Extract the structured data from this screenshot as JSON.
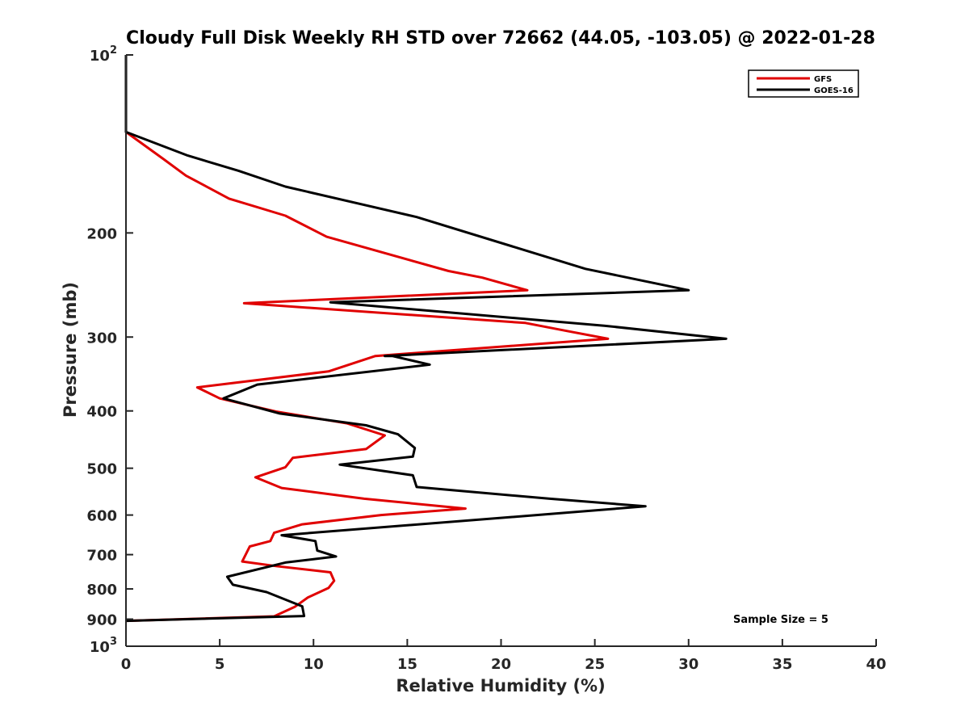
{
  "chart_data": {
    "type": "line",
    "title": "Cloudy Full Disk Weekly RH STD over 72662 (44.05, -103.05) @ 2022-01-28",
    "xlabel": "Relative Humidity (%)",
    "ylabel": "Pressure (mb)",
    "xlim": [
      0,
      40
    ],
    "ylim": [
      100,
      1000
    ],
    "yscale": "log",
    "y_reversed": true,
    "grid": false,
    "legend_placement": "top-right",
    "x_ticks": [
      "0",
      "5",
      "10",
      "15",
      "20",
      "25",
      "30",
      "35",
      "40"
    ],
    "y_ticks": [
      {
        "value": 100,
        "base": "10",
        "exp": "2"
      },
      {
        "value": 200,
        "label": "200"
      },
      {
        "value": 300,
        "label": "300"
      },
      {
        "value": 400,
        "label": "400"
      },
      {
        "value": 500,
        "label": "500"
      },
      {
        "value": 600,
        "label": "600"
      },
      {
        "value": 700,
        "label": "700"
      },
      {
        "value": 800,
        "label": "800"
      },
      {
        "value": 900,
        "label": "900"
      },
      {
        "value": 1000,
        "base": "10",
        "exp": "3"
      }
    ],
    "annotation": "Sample Size = 5",
    "series": [
      {
        "name": "GFS",
        "color": "#e00000",
        "points": [
          {
            "x": 0,
            "y": 100
          },
          {
            "x": 0,
            "y": 125
          },
          {
            "x": 0,
            "y": 135
          },
          {
            "x": 2,
            "y": 150
          },
          {
            "x": 3.2,
            "y": 160
          },
          {
            "x": 5.5,
            "y": 175
          },
          {
            "x": 8.5,
            "y": 187
          },
          {
            "x": 10.7,
            "y": 203
          },
          {
            "x": 17.2,
            "y": 232
          },
          {
            "x": 19,
            "y": 238
          },
          {
            "x": 21.4,
            "y": 250
          },
          {
            "x": 6.3,
            "y": 263
          },
          {
            "x": 21.3,
            "y": 284
          },
          {
            "x": 23.5,
            "y": 293
          },
          {
            "x": 25.7,
            "y": 302
          },
          {
            "x": 13.3,
            "y": 323
          },
          {
            "x": 10.8,
            "y": 343
          },
          {
            "x": 3.8,
            "y": 365
          },
          {
            "x": 5,
            "y": 381
          },
          {
            "x": 8,
            "y": 401
          },
          {
            "x": 11.8,
            "y": 420
          },
          {
            "x": 13.8,
            "y": 440
          },
          {
            "x": 12.8,
            "y": 464
          },
          {
            "x": 8.9,
            "y": 480
          },
          {
            "x": 8.5,
            "y": 498
          },
          {
            "x": 6.9,
            "y": 518
          },
          {
            "x": 8.3,
            "y": 540
          },
          {
            "x": 12.7,
            "y": 563
          },
          {
            "x": 18.1,
            "y": 585
          },
          {
            "x": 13.6,
            "y": 600
          },
          {
            "x": 9.4,
            "y": 622
          },
          {
            "x": 7.9,
            "y": 643
          },
          {
            "x": 7.7,
            "y": 664
          },
          {
            "x": 6.6,
            "y": 678
          },
          {
            "x": 6.2,
            "y": 719
          },
          {
            "x": 8,
            "y": 732
          },
          {
            "x": 10.9,
            "y": 750
          },
          {
            "x": 11.1,
            "y": 775
          },
          {
            "x": 10.8,
            "y": 797
          },
          {
            "x": 9.7,
            "y": 827
          },
          {
            "x": 9,
            "y": 858
          },
          {
            "x": 7.9,
            "y": 890
          },
          {
            "x": 0,
            "y": 906
          }
        ]
      },
      {
        "name": "GOES-16",
        "color": "#000000",
        "points": [
          {
            "x": 0,
            "y": 100
          },
          {
            "x": 0,
            "y": 125
          },
          {
            "x": 0,
            "y": 135
          },
          {
            "x": 3.3,
            "y": 148
          },
          {
            "x": 6,
            "y": 157
          },
          {
            "x": 8.5,
            "y": 167
          },
          {
            "x": 15.5,
            "y": 188
          },
          {
            "x": 24.5,
            "y": 230
          },
          {
            "x": 30,
            "y": 250
          },
          {
            "x": 10.9,
            "y": 262
          },
          {
            "x": 25.5,
            "y": 287
          },
          {
            "x": 32,
            "y": 302
          },
          {
            "x": 13.8,
            "y": 323
          },
          {
            "x": 14.2,
            "y": 323
          },
          {
            "x": 16.2,
            "y": 334
          },
          {
            "x": 7,
            "y": 361
          },
          {
            "x": 5.2,
            "y": 381
          },
          {
            "x": 8.2,
            "y": 404
          },
          {
            "x": 12.8,
            "y": 423
          },
          {
            "x": 14.5,
            "y": 438
          },
          {
            "x": 15.4,
            "y": 462
          },
          {
            "x": 15.3,
            "y": 478
          },
          {
            "x": 11.4,
            "y": 493
          },
          {
            "x": 15.3,
            "y": 514
          },
          {
            "x": 15.5,
            "y": 538
          },
          {
            "x": 22.6,
            "y": 563
          },
          {
            "x": 27.7,
            "y": 580
          },
          {
            "x": 22.5,
            "y": 598
          },
          {
            "x": 8.3,
            "y": 649
          },
          {
            "x": 10.1,
            "y": 664
          },
          {
            "x": 10.2,
            "y": 689
          },
          {
            "x": 11.2,
            "y": 705
          },
          {
            "x": 8.5,
            "y": 722
          },
          {
            "x": 5.4,
            "y": 763
          },
          {
            "x": 5.7,
            "y": 787
          },
          {
            "x": 7.5,
            "y": 810
          },
          {
            "x": 9.4,
            "y": 856
          },
          {
            "x": 9.5,
            "y": 889
          },
          {
            "x": 0,
            "y": 906
          }
        ]
      }
    ]
  }
}
